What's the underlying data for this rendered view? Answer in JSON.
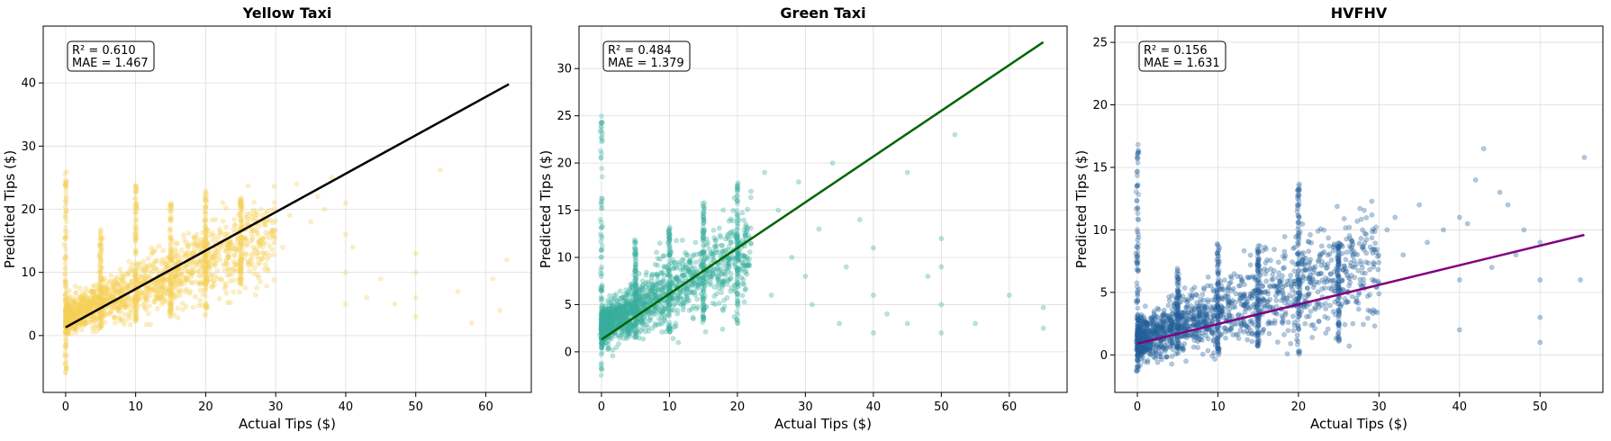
{
  "chart_data": [
    {
      "type": "scatter",
      "title": "Yellow Taxi",
      "xlabel": "Actual Tips ($)",
      "ylabel": "Predicted Tips ($)",
      "xlim": [
        -3.2,
        66.5
      ],
      "ylim": [
        -9,
        49
      ],
      "xticks": [
        0,
        10,
        20,
        30,
        40,
        50,
        60
      ],
      "yticks": [
        0,
        10,
        20,
        30,
        40
      ],
      "grid": true,
      "point_color": "#f5d05a",
      "line_color": "#000000",
      "fit_line": {
        "x": [
          0,
          63.3
        ],
        "y": [
          1.3,
          39.8
        ]
      },
      "stats": {
        "r2": "R² = 0.610",
        "mae": "MAE = 1.467"
      },
      "cloud": {
        "slope": 0.45,
        "intercept": 2.7,
        "x_max": 30,
        "noise": 2.2
      },
      "columns": [
        {
          "x": 0,
          "y_min": -6,
          "y_max": 26
        },
        {
          "x": 5,
          "y_min": 1,
          "y_max": 17
        },
        {
          "x": 10,
          "y_min": 2,
          "y_max": 24
        },
        {
          "x": 15,
          "y_min": 3,
          "y_max": 21
        },
        {
          "x": 20,
          "y_min": 3,
          "y_max": 23
        },
        {
          "x": 25,
          "y_min": 8,
          "y_max": 22
        }
      ],
      "outliers": [
        [
          31,
          14
        ],
        [
          32,
          19
        ],
        [
          33,
          24
        ],
        [
          35,
          18
        ],
        [
          36,
          22
        ],
        [
          37,
          20
        ],
        [
          38,
          25
        ],
        [
          40,
          5
        ],
        [
          40,
          10
        ],
        [
          40,
          16
        ],
        [
          40,
          21
        ],
        [
          41,
          14
        ],
        [
          43,
          6
        ],
        [
          45,
          9
        ],
        [
          47,
          5
        ],
        [
          50,
          3
        ],
        [
          50,
          6
        ],
        [
          50,
          10
        ],
        [
          50,
          13
        ],
        [
          53.5,
          26.2
        ],
        [
          56,
          7
        ],
        [
          58,
          2
        ],
        [
          61,
          9
        ],
        [
          62,
          4
        ],
        [
          63,
          12
        ]
      ]
    },
    {
      "type": "scatter",
      "title": "Green Taxi",
      "xlabel": "Actual Tips ($)",
      "ylabel": "Predicted Tips ($)",
      "xlim": [
        -3.3,
        68.5
      ],
      "ylim": [
        -4.3,
        34.5
      ],
      "xticks": [
        0,
        10,
        20,
        30,
        40,
        50,
        60
      ],
      "yticks": [
        0,
        5,
        10,
        15,
        20,
        25,
        30
      ],
      "grid": true,
      "point_color": "#3aaf9f",
      "line_color": "#006400",
      "fit_line": {
        "x": [
          0,
          65
        ],
        "y": [
          1.3,
          32.8
        ]
      },
      "stats": {
        "r2": "R² = 0.484",
        "mae": "MAE = 1.379"
      },
      "cloud": {
        "slope": 0.38,
        "intercept": 2.6,
        "x_max": 22,
        "noise": 1.6
      },
      "columns": [
        {
          "x": 0,
          "y_min": -2.5,
          "y_max": 25
        },
        {
          "x": 5,
          "y_min": 1.5,
          "y_max": 12
        },
        {
          "x": 10,
          "y_min": 2,
          "y_max": 13.5
        },
        {
          "x": 15,
          "y_min": 3,
          "y_max": 16
        },
        {
          "x": 20,
          "y_min": 3,
          "y_max": 18
        }
      ],
      "outliers": [
        [
          22,
          17
        ],
        [
          24,
          19
        ],
        [
          25,
          6
        ],
        [
          26,
          15
        ],
        [
          28,
          10
        ],
        [
          29,
          18
        ],
        [
          30,
          8
        ],
        [
          31,
          5
        ],
        [
          32,
          13
        ],
        [
          34,
          20
        ],
        [
          35,
          3
        ],
        [
          36,
          9
        ],
        [
          38,
          14
        ],
        [
          40,
          2
        ],
        [
          40,
          6
        ],
        [
          40,
          11
        ],
        [
          42,
          4
        ],
        [
          45,
          19
        ],
        [
          45,
          3
        ],
        [
          48,
          8
        ],
        [
          50,
          2
        ],
        [
          50,
          5
        ],
        [
          50,
          9
        ],
        [
          50,
          12
        ],
        [
          52,
          23
        ],
        [
          55,
          3
        ],
        [
          60,
          6
        ],
        [
          65,
          2.5
        ],
        [
          65,
          4.7
        ]
      ]
    },
    {
      "type": "scatter",
      "title": "HVFHV",
      "xlabel": "Actual Tips ($)",
      "ylabel": "Predicted Tips ($)",
      "xlim": [
        -2.8,
        57.8
      ],
      "ylim": [
        -3,
        26.3
      ],
      "xticks": [
        0,
        10,
        20,
        30,
        40,
        50
      ],
      "yticks": [
        0,
        5,
        10,
        15,
        20,
        25
      ],
      "grid": true,
      "point_color": "#24609a",
      "line_color": "#800080",
      "fit_line": {
        "x": [
          0,
          55.5
        ],
        "y": [
          0.9,
          9.6
        ]
      },
      "stats": {
        "r2": "R² = 0.156",
        "mae": "MAE = 1.631"
      },
      "cloud": {
        "slope": 0.21,
        "intercept": 1.2,
        "x_max": 30,
        "noise": 1.4
      },
      "columns": [
        {
          "x": 0,
          "y_min": -1.5,
          "y_max": 17
        },
        {
          "x": 5,
          "y_min": 0,
          "y_max": 7
        },
        {
          "x": 10,
          "y_min": 0,
          "y_max": 9
        },
        {
          "x": 15,
          "y_min": 0.5,
          "y_max": 9
        },
        {
          "x": 20,
          "y_min": 0,
          "y_max": 14
        },
        {
          "x": 25,
          "y_min": 1,
          "y_max": 9
        }
      ],
      "outliers": [
        [
          31,
          10
        ],
        [
          32,
          11
        ],
        [
          33,
          8
        ],
        [
          35,
          12
        ],
        [
          36,
          9
        ],
        [
          38,
          10
        ],
        [
          40,
          6
        ],
        [
          40,
          2
        ],
        [
          40,
          11
        ],
        [
          41,
          10.5
        ],
        [
          42,
          14
        ],
        [
          43,
          16.5
        ],
        [
          44,
          7
        ],
        [
          45,
          13
        ],
        [
          46,
          12
        ],
        [
          47,
          8
        ],
        [
          48,
          10
        ],
        [
          50,
          1
        ],
        [
          50,
          3
        ],
        [
          50,
          6
        ],
        [
          50,
          9
        ],
        [
          55.5,
          15.8
        ],
        [
          55,
          6
        ]
      ]
    }
  ]
}
